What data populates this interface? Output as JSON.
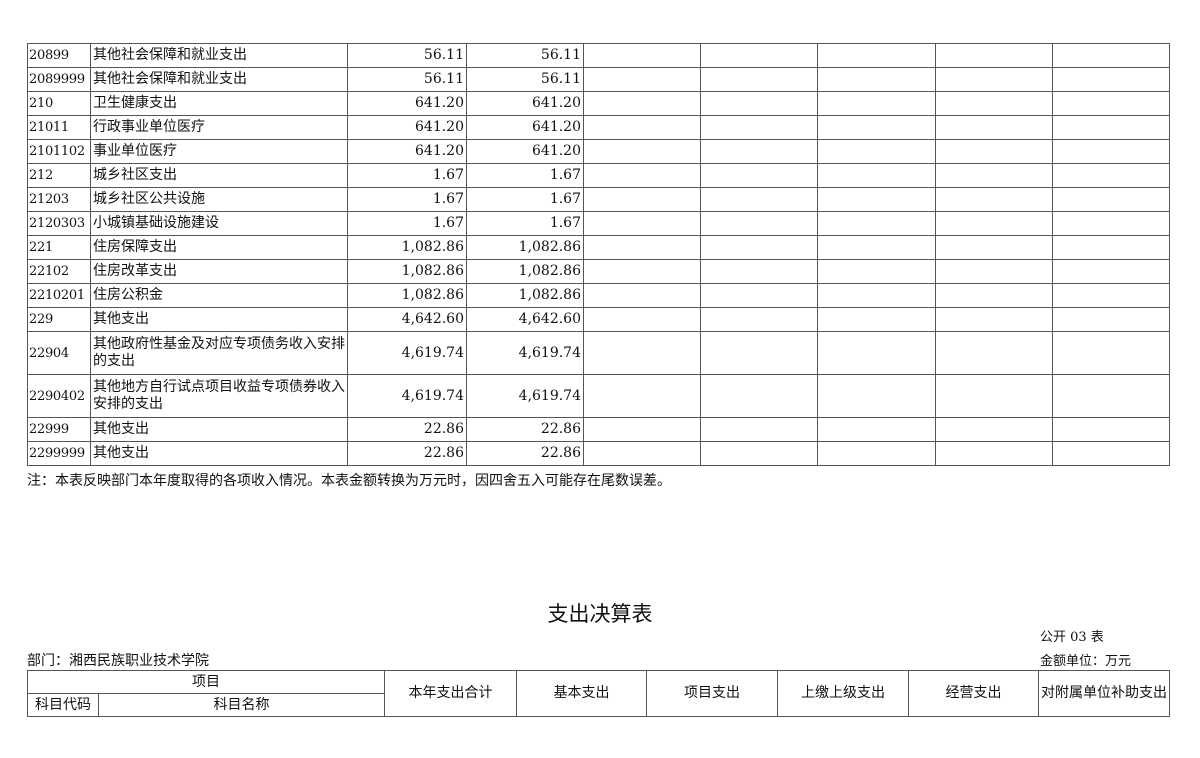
{
  "income_table": {
    "rows": [
      {
        "code": "20899",
        "name": "其他社会保障和就业支出",
        "total": "56.11",
        "col2": "56.11"
      },
      {
        "code": "2089999",
        "name": "其他社会保障和就业支出",
        "total": "56.11",
        "col2": "56.11"
      },
      {
        "code": "210",
        "name": "卫生健康支出",
        "total": "641.20",
        "col2": "641.20"
      },
      {
        "code": "21011",
        "name": "行政事业单位医疗",
        "total": "641.20",
        "col2": "641.20"
      },
      {
        "code": "2101102",
        "name": "事业单位医疗",
        "total": "641.20",
        "col2": "641.20"
      },
      {
        "code": "212",
        "name": "城乡社区支出",
        "total": "1.67",
        "col2": "1.67"
      },
      {
        "code": "21203",
        "name": "城乡社区公共设施",
        "total": "1.67",
        "col2": "1.67"
      },
      {
        "code": "2120303",
        "name": "小城镇基础设施建设",
        "total": "1.67",
        "col2": "1.67"
      },
      {
        "code": "221",
        "name": "住房保障支出",
        "total": "1,082.86",
        "col2": "1,082.86"
      },
      {
        "code": "22102",
        "name": "住房改革支出",
        "total": "1,082.86",
        "col2": "1,082.86"
      },
      {
        "code": "2210201",
        "name": "住房公积金",
        "total": "1,082.86",
        "col2": "1,082.86"
      },
      {
        "code": "229",
        "name": "其他支出",
        "total": "4,642.60",
        "col2": "4,642.60"
      },
      {
        "code": "22904",
        "name": "其他政府性基金及对应专项债务收入安排的支出",
        "total": "4,619.74",
        "col2": "4,619.74"
      },
      {
        "code": "2290402",
        "name": "其他地方自行试点项目收益专项债券收入安排的支出",
        "total": "4,619.74",
        "col2": "4,619.74"
      },
      {
        "code": "22999",
        "name": "其他支出",
        "total": "22.86",
        "col2": "22.86"
      },
      {
        "code": "2299999",
        "name": "其他支出",
        "total": "22.86",
        "col2": "22.86"
      }
    ],
    "note": "注：本表反映部门本年度取得的各项收入情况。本表金额转换为万元时，因四舍五入可能存在尾数误差。"
  },
  "expense_table": {
    "title": "支出决算表",
    "table_no": "公开 03 表",
    "department": "部门：湘西民族职业技术学院",
    "unit": "金额单位：万元",
    "headers": {
      "item": "项目",
      "code": "科目代码",
      "name": "科目名称",
      "total": "本年支出合计",
      "basic": "基本支出",
      "project": "项目支出",
      "upper": "上缴上级支出",
      "business": "经营支出",
      "subsidy": "对附属单位补助支出"
    }
  }
}
